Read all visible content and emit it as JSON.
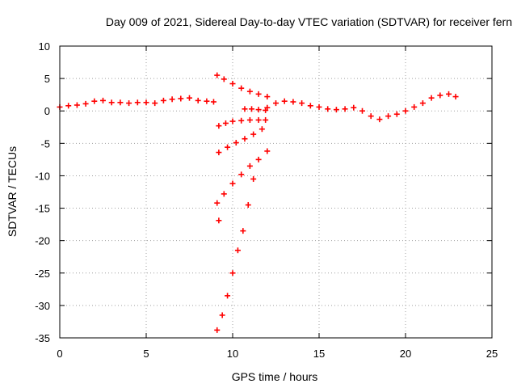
{
  "chart_data": {
    "type": "scatter",
    "title": "Day 009 of 2021, Sidereal Day-to-day VTEC variation (SDTVAR) for receiver fern",
    "xlabel": "GPS time / hours",
    "ylabel": "SDTVAR / TECUs",
    "xlim": [
      0,
      25
    ],
    "ylim": [
      -35,
      10
    ],
    "xticks": [
      "0",
      "5",
      "10",
      "15",
      "20",
      "25"
    ],
    "yticks": [
      "10",
      "5",
      "0",
      "-5",
      "-10",
      "-15",
      "-20",
      "-25",
      "-30",
      "-35"
    ],
    "grid": true,
    "legend": "none",
    "marker": "plus",
    "color": "#ff0000",
    "series": [
      {
        "x": [
          0.0,
          0.5,
          1.0,
          1.5,
          2.0,
          2.5,
          3.0,
          3.5,
          4.0,
          4.5,
          5.0,
          5.5,
          6.0,
          6.5,
          7.0,
          7.5,
          8.0,
          8.5,
          8.9
        ],
        "y": [
          0.6,
          0.8,
          0.9,
          1.1,
          1.5,
          1.6,
          1.3,
          1.3,
          1.2,
          1.3,
          1.3,
          1.2,
          1.6,
          1.8,
          1.9,
          2.0,
          1.6,
          1.5,
          1.4
        ]
      },
      {
        "x": [
          12.0,
          12.5,
          13.0,
          13.5,
          14.0,
          14.5,
          15.0,
          15.5,
          16.0,
          16.5,
          17.0,
          17.5,
          18.0,
          18.5,
          19.0,
          19.5,
          20.0,
          20.5,
          21.0,
          21.5,
          22.0,
          22.5,
          22.9
        ],
        "y": [
          0.5,
          1.2,
          1.5,
          1.4,
          1.2,
          0.8,
          0.6,
          0.3,
          0.2,
          0.3,
          0.5,
          0.0,
          -0.8,
          -1.3,
          -0.8,
          -0.5,
          0.0,
          0.6,
          1.2,
          2.0,
          2.4,
          2.6,
          2.2
        ]
      },
      {
        "x": [
          9.1,
          9.5,
          10.0,
          10.5,
          11.0,
          11.5,
          12.0
        ],
        "y": [
          5.5,
          4.9,
          4.2,
          3.5,
          3.0,
          2.6,
          2.2
        ]
      },
      {
        "x": [
          10.7,
          11.1,
          11.5,
          11.9
        ],
        "y": [
          0.3,
          0.3,
          0.2,
          0.1
        ]
      },
      {
        "x": [
          9.2,
          9.6,
          10.0,
          10.5,
          11.0,
          11.5,
          11.9
        ],
        "y": [
          -2.3,
          -1.9,
          -1.6,
          -1.5,
          -1.4,
          -1.4,
          -1.4
        ]
      },
      {
        "x": [
          9.2,
          9.7,
          10.2,
          10.7,
          11.2,
          11.7
        ],
        "y": [
          -6.4,
          -5.6,
          -4.9,
          -4.3,
          -3.6,
          -2.8
        ]
      },
      {
        "x": [
          9.1,
          9.5,
          10.0,
          10.5,
          11.0,
          11.5,
          12.0
        ],
        "y": [
          -14.2,
          -12.8,
          -11.2,
          -9.8,
          -8.5,
          -7.5,
          -6.2
        ]
      },
      {
        "x": [
          9.2
        ],
        "y": [
          -16.9
        ]
      },
      {
        "x": [
          9.1,
          9.4,
          9.7,
          10.0,
          10.3,
          10.6,
          10.9,
          11.2
        ],
        "y": [
          -33.8,
          -31.5,
          -28.5,
          -25.0,
          -21.5,
          -18.5,
          -14.5,
          -10.5
        ]
      }
    ]
  }
}
